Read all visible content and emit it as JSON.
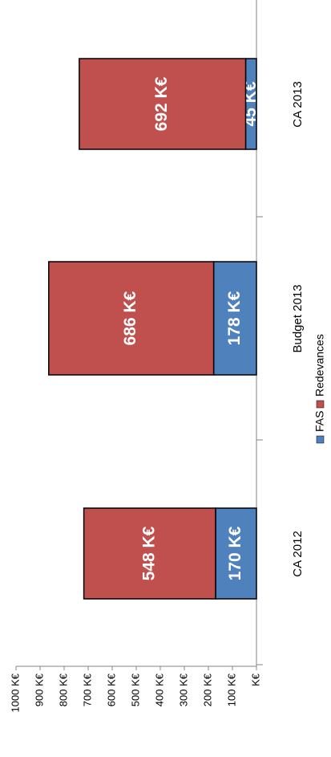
{
  "chart_data": {
    "type": "bar",
    "stacked": true,
    "orientation": "rotated-90-ccw",
    "categories": [
      "CA 2012",
      "Budget 2013",
      "CA 2013"
    ],
    "series": [
      {
        "name": "FAS",
        "values": [
          170,
          178,
          45
        ],
        "labels": [
          "170 K€",
          "178 K€",
          "45 K€"
        ],
        "color": "#4f81bd"
      },
      {
        "name": "Redevances",
        "values": [
          548,
          686,
          692
        ],
        "labels": [
          "548 K€",
          "686 K€",
          "692 K€"
        ],
        "color": "#c0504d"
      }
    ],
    "yaxis": {
      "ticks": [
        0,
        100,
        200,
        300,
        400,
        500,
        600,
        700,
        800,
        900,
        1000
      ],
      "tick_labels": [
        "K€",
        "100 K€",
        "200 K€",
        "300 K€",
        "400 K€",
        "500 K€",
        "600 K€",
        "700 K€",
        "800 K€",
        "900 K€",
        "1000 K€"
      ],
      "ylim": [
        0,
        1000
      ]
    },
    "legend_position": "bottom",
    "grid": false
  }
}
